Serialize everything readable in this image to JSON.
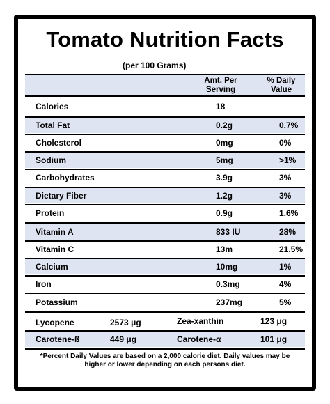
{
  "title": "Tomato Nutrition Facts",
  "subtitle": "(per 100 Grams)",
  "headers": {
    "amount_line1": "Amt. Per",
    "amount_line2": "Serving",
    "daily_line1": "% Daily",
    "daily_line2": "Value"
  },
  "rows": [
    {
      "label": "Calories",
      "amount": "18",
      "daily": ""
    },
    {
      "label": "Total Fat",
      "amount": "0.2g",
      "daily": "0.7%"
    },
    {
      "label": "Cholesterol",
      "amount": "0mg",
      "daily": "0%"
    },
    {
      "label": "Sodium",
      "amount": "5mg",
      "daily": ">1%"
    },
    {
      "label": "Carbohydrates",
      "amount": "3.9g",
      "daily": "3%"
    },
    {
      "label": "Dietary Fiber",
      "amount": "1.2g",
      "daily": "3%"
    },
    {
      "label": "Protein",
      "amount": "0.9g",
      "daily": "1.6%"
    },
    {
      "label": "Vitamin A",
      "amount": "833 IU",
      "daily": "28%"
    },
    {
      "label": "Vitamin C",
      "amount": "13m",
      "daily": "21.5%"
    },
    {
      "label": "Calcium",
      "amount": "10mg",
      "daily": "1%"
    },
    {
      "label": "Iron",
      "amount": "0.3mg",
      "daily": "4%"
    },
    {
      "label": "Potassium",
      "amount": "237mg",
      "daily": "5%"
    }
  ],
  "pigments": [
    {
      "name1": "Lycopene",
      "value1": "2573 μg",
      "name2": "Zea-xanthin",
      "value2": "123 μg"
    },
    {
      "name1": "Carotene-ß",
      "value1": "449 μg",
      "name2": "Carotene-α",
      "value2": "101 μg"
    }
  ],
  "footnote": "*Percent Daily Values are based on a 2,000 calorie diet. Daily values may be higher or lower depending on each persons diet.",
  "colors": {
    "shade": "#dfe4f2",
    "border": "#000000"
  }
}
